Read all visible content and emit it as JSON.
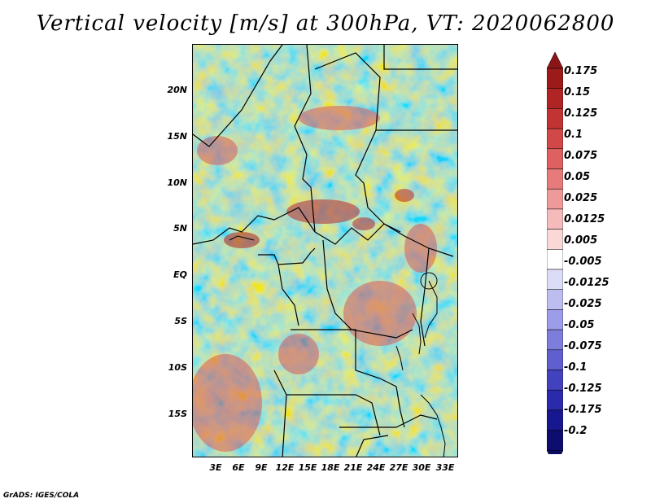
{
  "title": "Vertical velocity [m/s] at 300hPa, VT: 2020062800",
  "footer": "GrADS: IGES/COLA",
  "map": {
    "lat_labels": [
      "20N",
      "15N",
      "10N",
      "5N",
      "EQ",
      "5S",
      "10S",
      "15S"
    ],
    "lon_labels": [
      "3E",
      "6E",
      "9E",
      "12E",
      "15E",
      "18E",
      "21E",
      "24E",
      "27E",
      "30E",
      "33E"
    ]
  },
  "colorbar": {
    "labels": [
      "0.175",
      "0.15",
      "0.125",
      "0.1",
      "0.075",
      "0.05",
      "0.025",
      "0.0125",
      "0.005",
      "-0.005",
      "-0.0125",
      "-0.025",
      "-0.05",
      "-0.075",
      "-0.1",
      "-0.125",
      "-0.175",
      "-0.2"
    ],
    "colors": [
      "#9b1b1b",
      "#b02424",
      "#c23333",
      "#d24848",
      "#de6060",
      "#e77b7b",
      "#ef9a9a",
      "#f5baba",
      "#fad8d8",
      "#ffffff",
      "#dcdcf7",
      "#bdbdf0",
      "#9c9ce8",
      "#7d7ddc",
      "#5f5fcf",
      "#4242bf",
      "#2a2aab",
      "#171790",
      "#0d0d70"
    ],
    "top_tri": "#8b1515",
    "bottom_tri": "#0b0b66"
  }
}
